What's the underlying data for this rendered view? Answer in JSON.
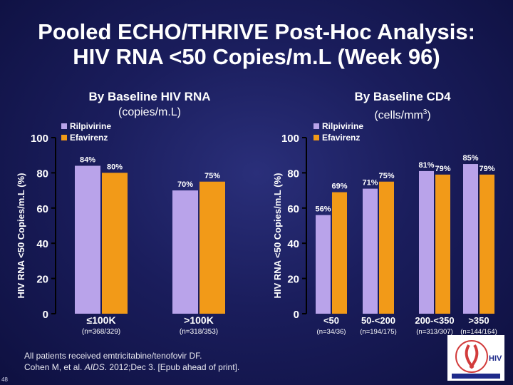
{
  "page": {
    "title_line1": "Pooled ECHO/THRIVE Post-Hoc Analysis:",
    "title_line2": "HIV RNA <50 Copies/m.L (Week 96)",
    "footnote_line1": "All patients received emtricitabine/tenofovir DF.",
    "footnote_line2_a": "Cohen M, et al. ",
    "footnote_line2_b": "AIDS",
    "footnote_line2_c": ". 2012;Dec 3. [Epub ahead of print].",
    "page_number": "48",
    "logo_text": "HIV",
    "colors": {
      "rilpivirine": "#b9a3ea",
      "efavirenz": "#f29a18",
      "background": "#1a1d5c"
    }
  },
  "chart_data": [
    {
      "type": "bar",
      "title": "By Baseline HIV RNA",
      "subtitle": "(copies/m.L)",
      "ylabel": "HIV RNA <50 Copies/m.L (%)",
      "ylim": [
        0,
        100
      ],
      "yticks": [
        "0",
        "20",
        "40",
        "60",
        "80",
        "100"
      ],
      "categories": [
        "<100K",
        ">100K"
      ],
      "category_labels": [
        "≤100K",
        ">100K"
      ],
      "category_n": [
        "(n=368/329)",
        "(n=318/353)"
      ],
      "series": [
        {
          "name": "Rilpivirine",
          "values": [
            84,
            70
          ],
          "labels": [
            "84%",
            "70%"
          ],
          "color": "#b9a3ea"
        },
        {
          "name": "Efavirenz",
          "values": [
            80,
            75
          ],
          "labels": [
            "80%",
            "75%"
          ],
          "color": "#f29a18"
        }
      ],
      "legend": "top-left"
    },
    {
      "type": "bar",
      "title": "By Baseline CD4",
      "subtitle_main": "(cells/mm",
      "subtitle_sup": "3",
      "subtitle_end": ")",
      "ylabel": "HIV RNA <50 Copies/m.L (%)",
      "ylim": [
        0,
        100
      ],
      "yticks": [
        "0",
        "20",
        "40",
        "60",
        "80",
        "100"
      ],
      "categories": [
        "<50",
        "50-<200",
        "200-<350",
        ">350"
      ],
      "category_labels": [
        "<50",
        "50-<200",
        "200-<350",
        ">350"
      ],
      "category_n": [
        "(n=34/36)",
        "(n=194/175)",
        "(n=313/307)",
        "(n=144/164)"
      ],
      "series": [
        {
          "name": "Rilpivirine",
          "values": [
            56,
            71,
            81,
            85
          ],
          "labels": [
            "56%",
            "71%",
            "81%",
            "85%"
          ],
          "color": "#b9a3ea"
        },
        {
          "name": "Efavirenz",
          "values": [
            69,
            75,
            79,
            79
          ],
          "labels": [
            "69%",
            "75%",
            "79%",
            "79%"
          ],
          "color": "#f29a18"
        }
      ],
      "legend": "top-left"
    }
  ]
}
